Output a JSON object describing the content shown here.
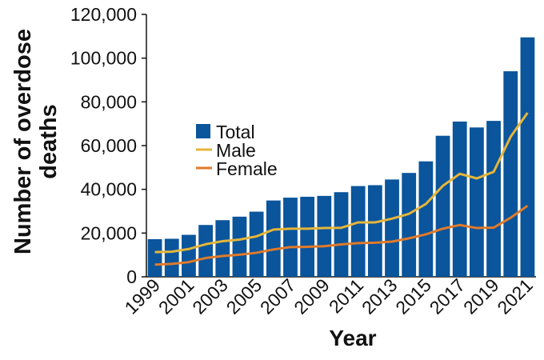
{
  "chart_data": {
    "type": "bar-line",
    "xlabel": "Year",
    "ylabel": "Number of overdose deaths",
    "categories": [
      "1999",
      null,
      "2001",
      null,
      "2003",
      null,
      "2005",
      null,
      "2007",
      null,
      "2009",
      null,
      "2011",
      null,
      "2013",
      null,
      "2015",
      null,
      "2017",
      null,
      "2019",
      null,
      "2021"
    ],
    "series": [
      {
        "name": "Total",
        "type": "bar",
        "color": "#0a559c",
        "values": [
          17200,
          17400,
          19200,
          23700,
          25900,
          27500,
          29800,
          34900,
          36200,
          36600,
          37000,
          38700,
          41500,
          41900,
          44500,
          47500,
          52800,
          64500,
          71000,
          68300,
          71300,
          94000,
          109500
        ]
      },
      {
        "name": "Male",
        "type": "line",
        "color": "#e5b53a",
        "values": [
          11300,
          11500,
          12700,
          14900,
          16300,
          17000,
          18500,
          21600,
          22000,
          22000,
          22300,
          22400,
          24900,
          24900,
          26600,
          28800,
          33300,
          41600,
          47100,
          45000,
          48000,
          64000,
          75000
        ]
      },
      {
        "name": "Female",
        "type": "line",
        "color": "#e07a2a",
        "values": [
          5600,
          5900,
          6700,
          8600,
          9500,
          10100,
          11000,
          12500,
          13600,
          13700,
          14000,
          14800,
          15400,
          15600,
          16100,
          17600,
          19400,
          22000,
          23700,
          22300,
          22500,
          27000,
          32500
        ]
      }
    ],
    "ylim": [
      0,
      120000
    ],
    "yticks": [
      0,
      {
        "value": 20000,
        "label": "20,000"
      },
      {
        "value": 40000,
        "label": "40,000"
      },
      {
        "value": 60000,
        "label": "60,000"
      },
      {
        "value": 80000,
        "label": "80,000"
      },
      {
        "value": 100000,
        "label": "100,000"
      },
      {
        "value": 120000,
        "label": "120,000"
      }
    ],
    "grid": false,
    "legend": "center-left"
  }
}
